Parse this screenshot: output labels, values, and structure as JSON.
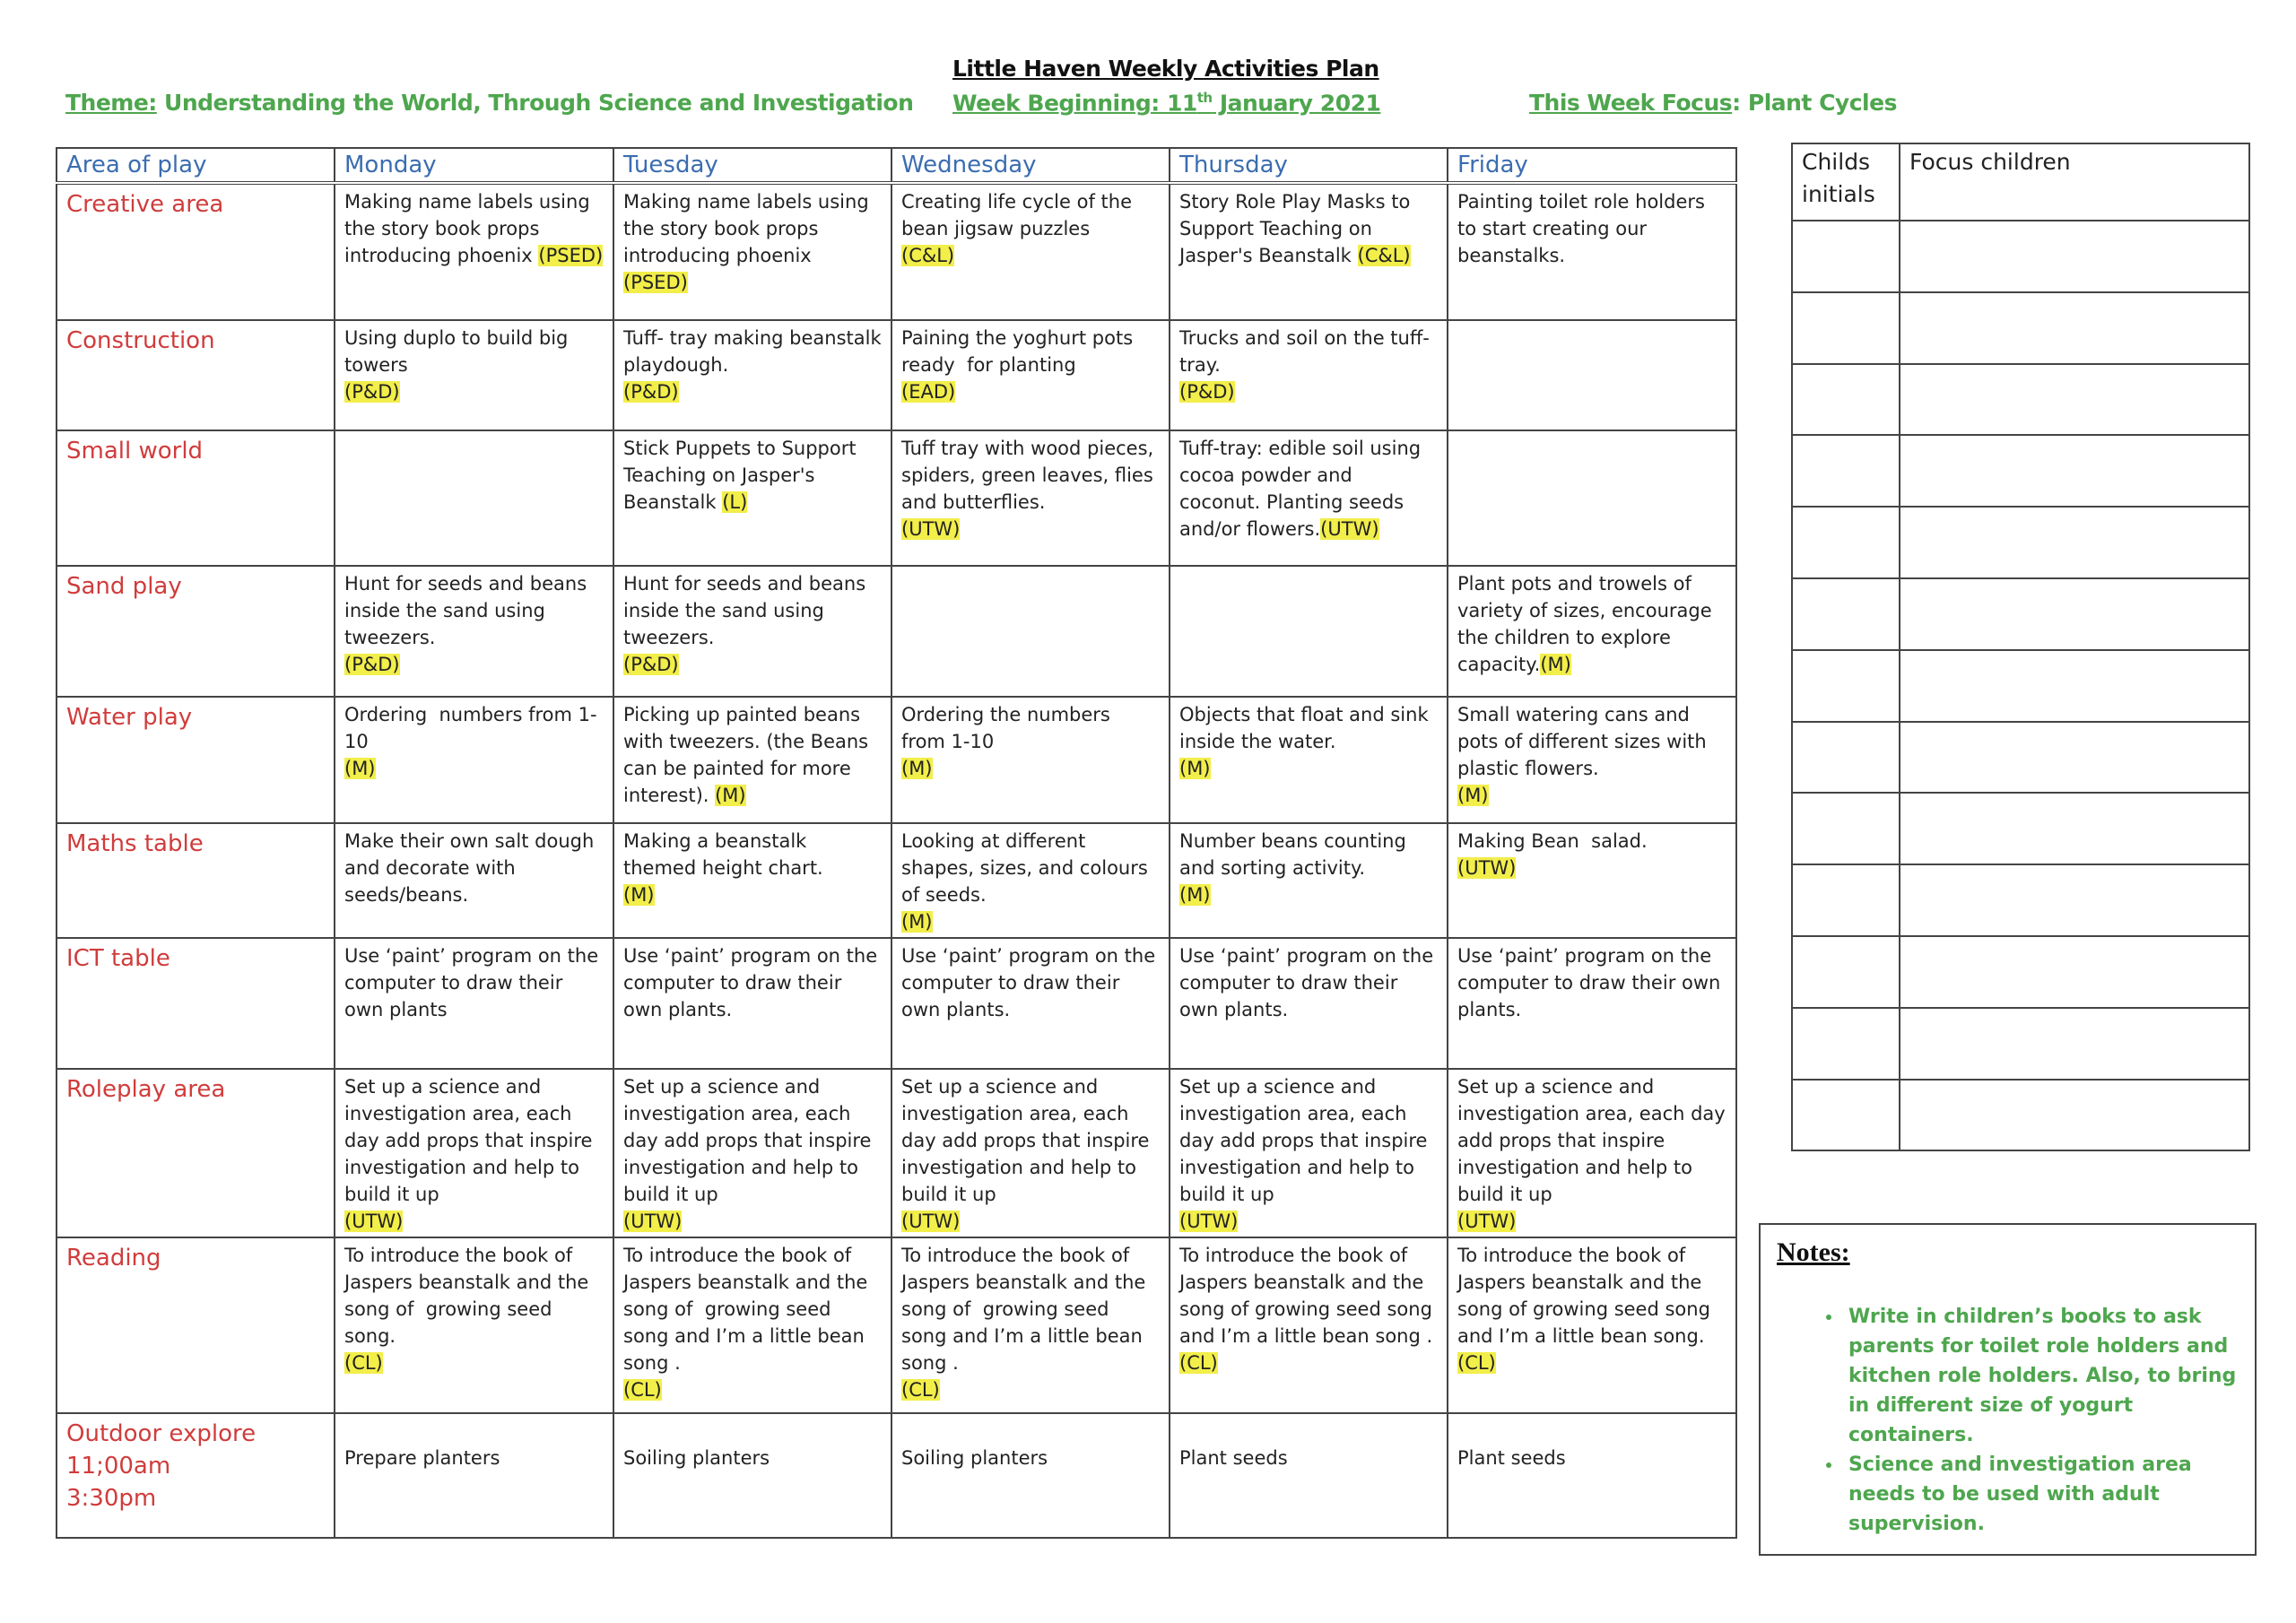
{
  "header": {
    "title": "Little Haven Weekly Activities Plan",
    "theme_label": "Theme:",
    "theme_value": " Understanding the World, Through Science and Investigation",
    "week_label": "Week Beginning: 11",
    "week_sup": "th",
    "week_rest": " January 2021",
    "focus_label": "This Week Focus",
    "focus_value": ": Plant Cycles"
  },
  "colors": {
    "green": "#4ea64e",
    "red": "#d03c3c",
    "blue": "#3b6db0",
    "highlight": "#f2ee4a"
  },
  "plan": {
    "columns": [
      "Area of play",
      "Monday",
      "Tuesday",
      "Wednesday",
      "Thursday",
      "Friday"
    ],
    "rows": [
      {
        "area": "Creative area",
        "cells": [
          [
            {
              "t": "Making name labels using the story book props introducing phoenix "
            },
            {
              "t": "(PSED)",
              "hl": true
            }
          ],
          [
            {
              "t": "Making name labels using the story book props introducing phoenix\n"
            },
            {
              "t": "(PSED)",
              "hl": true
            }
          ],
          [
            {
              "t": "Creating life cycle of the bean jigsaw puzzles\n"
            },
            {
              "t": "(C&L)",
              "hl": true
            }
          ],
          [
            {
              "t": "Story Role Play Masks to Support Teaching on Jasper's Beanstalk "
            },
            {
              "t": "(C&L)",
              "hl": true
            }
          ],
          [
            {
              "t": "Painting toilet role holders to start creating our beanstalks."
            }
          ]
        ]
      },
      {
        "area": "Construction",
        "cells": [
          [
            {
              "t": "Using duplo to build big towers\n"
            },
            {
              "t": "(P&D)",
              "hl": true
            }
          ],
          [
            {
              "t": "Tuff- tray making beanstalk playdough.\n"
            },
            {
              "t": "(P&D)",
              "hl": true
            }
          ],
          [
            {
              "t": "Paining the yoghurt pots ready  for planting\n"
            },
            {
              "t": "(EAD)",
              "hl": true
            }
          ],
          [
            {
              "t": "Trucks and soil on the tuff-tray.\n"
            },
            {
              "t": "(P&D)",
              "hl": true
            }
          ],
          []
        ]
      },
      {
        "area": "Small world",
        "cells": [
          [],
          [
            {
              "t": "Stick Puppets to Support Teaching on Jasper's Beanstalk "
            },
            {
              "t": "(L)",
              "hl": true
            }
          ],
          [
            {
              "t": "Tuff tray with wood pieces, spiders, green leaves, flies and butterflies.\n"
            },
            {
              "t": "(UTW)",
              "hl": true
            }
          ],
          [
            {
              "t": "Tuff-tray: edible soil using cocoa powder and coconut. Planting seeds and/or flowers."
            },
            {
              "t": "(UTW)",
              "hl": true
            }
          ],
          []
        ]
      },
      {
        "area": "Sand play",
        "cells": [
          [
            {
              "t": "Hunt for seeds and beans inside the sand using tweezers.\n"
            },
            {
              "t": "(P&D)",
              "hl": true
            }
          ],
          [
            {
              "t": "Hunt for seeds and beans inside the sand using tweezers.\n"
            },
            {
              "t": "(P&D)",
              "hl": true
            }
          ],
          [],
          [],
          [
            {
              "t": "Plant pots and trowels of variety of sizes, encourage the children to explore capacity."
            },
            {
              "t": "(M)",
              "hl": true
            }
          ]
        ]
      },
      {
        "area": "Water play",
        "cells": [
          [
            {
              "t": "Ordering  numbers from 1-10\n"
            },
            {
              "t": "(M)",
              "hl": true
            }
          ],
          [
            {
              "t": "Picking up painted beans with tweezers. (the Beans can be painted for more interest). "
            },
            {
              "t": "(M)",
              "hl": true
            }
          ],
          [
            {
              "t": "Ordering the numbers from 1-10\n"
            },
            {
              "t": "(M)",
              "hl": true
            }
          ],
          [
            {
              "t": "Objects that float and sink inside the water.\n"
            },
            {
              "t": "(M)",
              "hl": true
            }
          ],
          [
            {
              "t": "Small watering cans and pots of different sizes with plastic flowers.\n"
            },
            {
              "t": "(M)",
              "hl": true
            }
          ]
        ]
      },
      {
        "area": "Maths table",
        "cells": [
          [
            {
              "t": "Make their own salt dough and decorate with seeds/beans."
            }
          ],
          [
            {
              "t": "Making a beanstalk themed height chart.\n"
            },
            {
              "t": "(M)",
              "hl": true
            }
          ],
          [
            {
              "t": "Looking at different shapes, sizes, and colours of seeds.\n"
            },
            {
              "t": "(M)",
              "hl": true
            }
          ],
          [
            {
              "t": "Number beans counting and sorting activity.\n"
            },
            {
              "t": "(M)",
              "hl": true
            }
          ],
          [
            {
              "t": "Making Bean  salad.\n"
            },
            {
              "t": "(UTW)",
              "hl": true
            }
          ]
        ]
      },
      {
        "area": "ICT table",
        "cells": [
          [
            {
              "t": "Use ‘paint’ program on the computer to draw their own plants"
            }
          ],
          [
            {
              "t": "Use ‘paint’ program on the computer to draw their own plants."
            }
          ],
          [
            {
              "t": "Use ‘paint’ program on the computer to draw their own plants."
            }
          ],
          [
            {
              "t": "Use ‘paint’ program on the computer to draw their own plants."
            }
          ],
          [
            {
              "t": "Use ‘paint’ program on the computer to draw their own plants."
            }
          ]
        ]
      },
      {
        "area": "Roleplay area",
        "cells": [
          [
            {
              "t": "Set up a science and investigation area, each day add props that inspire investigation and help to build it up\n"
            },
            {
              "t": "(UTW)",
              "hl": true
            }
          ],
          [
            {
              "t": "Set up a science and investigation area, each day add props that inspire investigation and help to build it up\n"
            },
            {
              "t": "(UTW)",
              "hl": true
            }
          ],
          [
            {
              "t": "Set up a science and investigation area, each day add props that inspire investigation and help to build it up\n"
            },
            {
              "t": "(UTW)",
              "hl": true
            }
          ],
          [
            {
              "t": "Set up a science and investigation area, each day add props that inspire investigation and help to build it up\n"
            },
            {
              "t": "(UTW)",
              "hl": true
            }
          ],
          [
            {
              "t": "Set up a science and investigation area, each day add props that inspire investigation and help to build it up\n"
            },
            {
              "t": "(UTW)",
              "hl": true
            }
          ]
        ]
      },
      {
        "area": "Reading",
        "cells": [
          [
            {
              "t": "To introduce the book of Jaspers beanstalk and the song of  growing seed song.\n"
            },
            {
              "t": "(CL)",
              "hl": true
            }
          ],
          [
            {
              "t": "To introduce the book of Jaspers beanstalk and the song of  growing seed song and I’m a little bean song .\n"
            },
            {
              "t": "(CL)",
              "hl": true
            }
          ],
          [
            {
              "t": "To introduce the book of Jaspers beanstalk and the song of  growing seed song and I’m a little bean song .\n"
            },
            {
              "t": "(CL)",
              "hl": true
            }
          ],
          [
            {
              "t": "To introduce the book of Jaspers beanstalk and the song of growing seed song and I’m a little bean song .\n"
            },
            {
              "t": "(CL)",
              "hl": true
            }
          ],
          [
            {
              "t": "To introduce the book of Jaspers beanstalk and the song of growing seed song and I’m a little bean song.\n"
            },
            {
              "t": "(CL)",
              "hl": true
            }
          ]
        ]
      },
      {
        "area": "Outdoor explore\n11;00am\n3:30pm",
        "cells": [
          [
            {
              "t": "\nPrepare planters"
            }
          ],
          [
            {
              "t": "\nSoiling planters"
            }
          ],
          [
            {
              "t": "\nSoiling planters"
            }
          ],
          [
            {
              "t": "\nPlant seeds"
            }
          ],
          [
            {
              "t": "\nPlant seeds"
            }
          ]
        ]
      }
    ]
  },
  "focus_table": {
    "col_initials": "Childs initials",
    "col_children": "Focus children",
    "row_count": 13
  },
  "notes": {
    "title": "Notes:",
    "items": [
      "Write in children’s books to ask parents for toilet role holders and kitchen role holders.  Also, to bring in different size of yogurt containers.",
      "Science and investigation area needs to be used with adult supervision."
    ]
  }
}
